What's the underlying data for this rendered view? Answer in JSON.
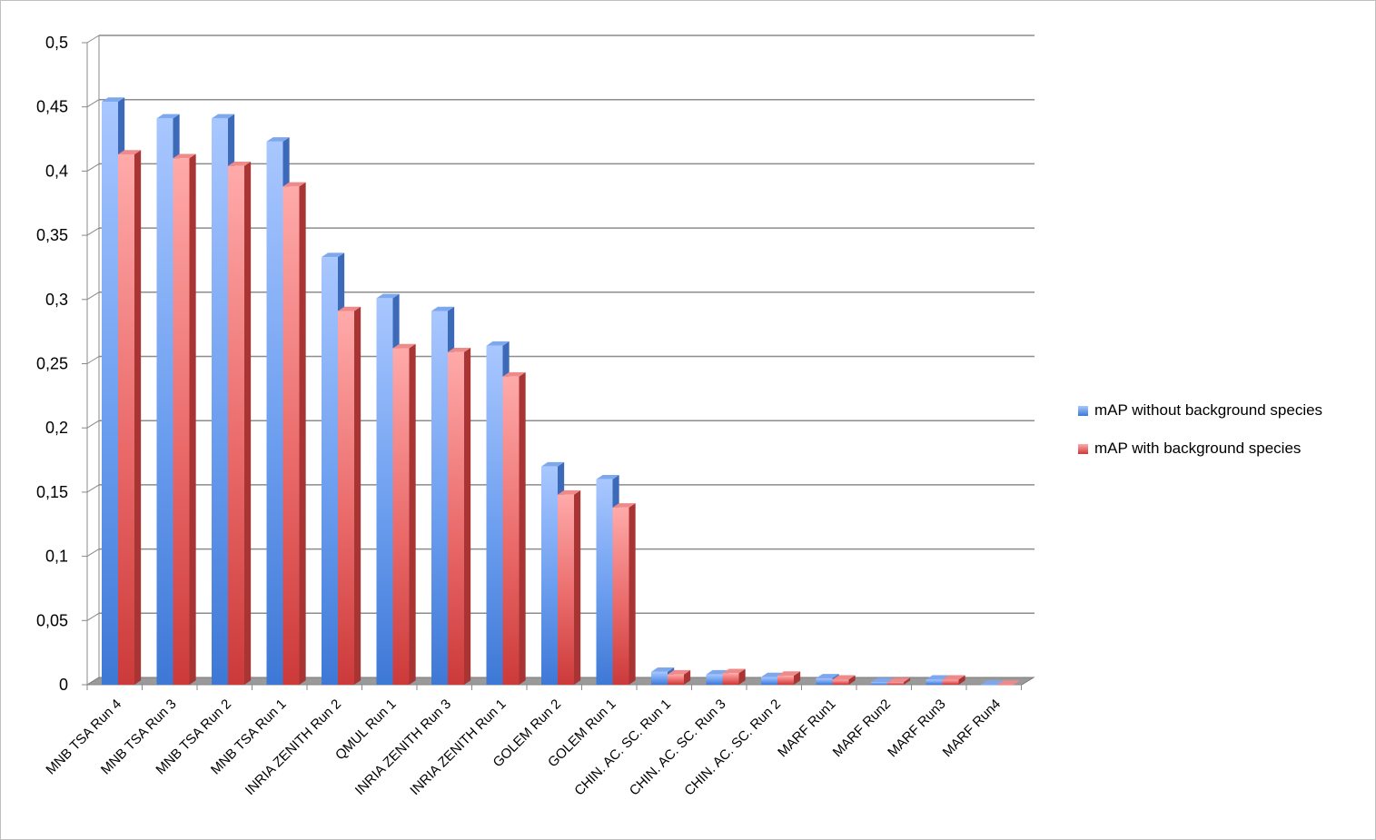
{
  "chart_data": {
    "type": "bar",
    "title": "",
    "xlabel": "",
    "ylabel": "",
    "ylim": [
      0,
      0.5
    ],
    "yticks": [
      "0",
      "0,05",
      "0,1",
      "0,15",
      "0,2",
      "0,25",
      "0,3",
      "0,35",
      "0,4",
      "0,45",
      "0,5"
    ],
    "grid": true,
    "legend_position": "right",
    "categories": [
      "MNB TSA Run 4",
      "MNB TSA Run 3",
      "MNB TSA Run 2",
      "MNB TSA Run 1",
      "INRIA ZENITH Run 2",
      "QMUL Run 1",
      "INRIA ZENITH Run 3",
      "INRIA ZENITH Run 1",
      "GOLEM Run 2",
      "GOLEM Run 1",
      "CHIN. AC. SC. Run 1",
      "CHIN. AC. SC. Run 3",
      "CHIN. AC. SC. Run 2",
      "MARF Run1",
      "MARF Run2",
      "MARF Run3",
      "MARF Run4"
    ],
    "series": [
      {
        "name": "mAP without background species",
        "color": "#4a86e8",
        "values": [
          0.454,
          0.441,
          0.441,
          0.423,
          0.333,
          0.301,
          0.291,
          0.264,
          0.17,
          0.16,
          0.01,
          0.008,
          0.006,
          0.005,
          0.002,
          0.004,
          0.0
        ]
      },
      {
        "name": "mAP with background species",
        "color": "#e05252",
        "values": [
          0.413,
          0.41,
          0.404,
          0.388,
          0.291,
          0.262,
          0.259,
          0.24,
          0.148,
          0.138,
          0.008,
          0.009,
          0.007,
          0.004,
          0.002,
          0.004,
          0.0
        ]
      }
    ]
  }
}
